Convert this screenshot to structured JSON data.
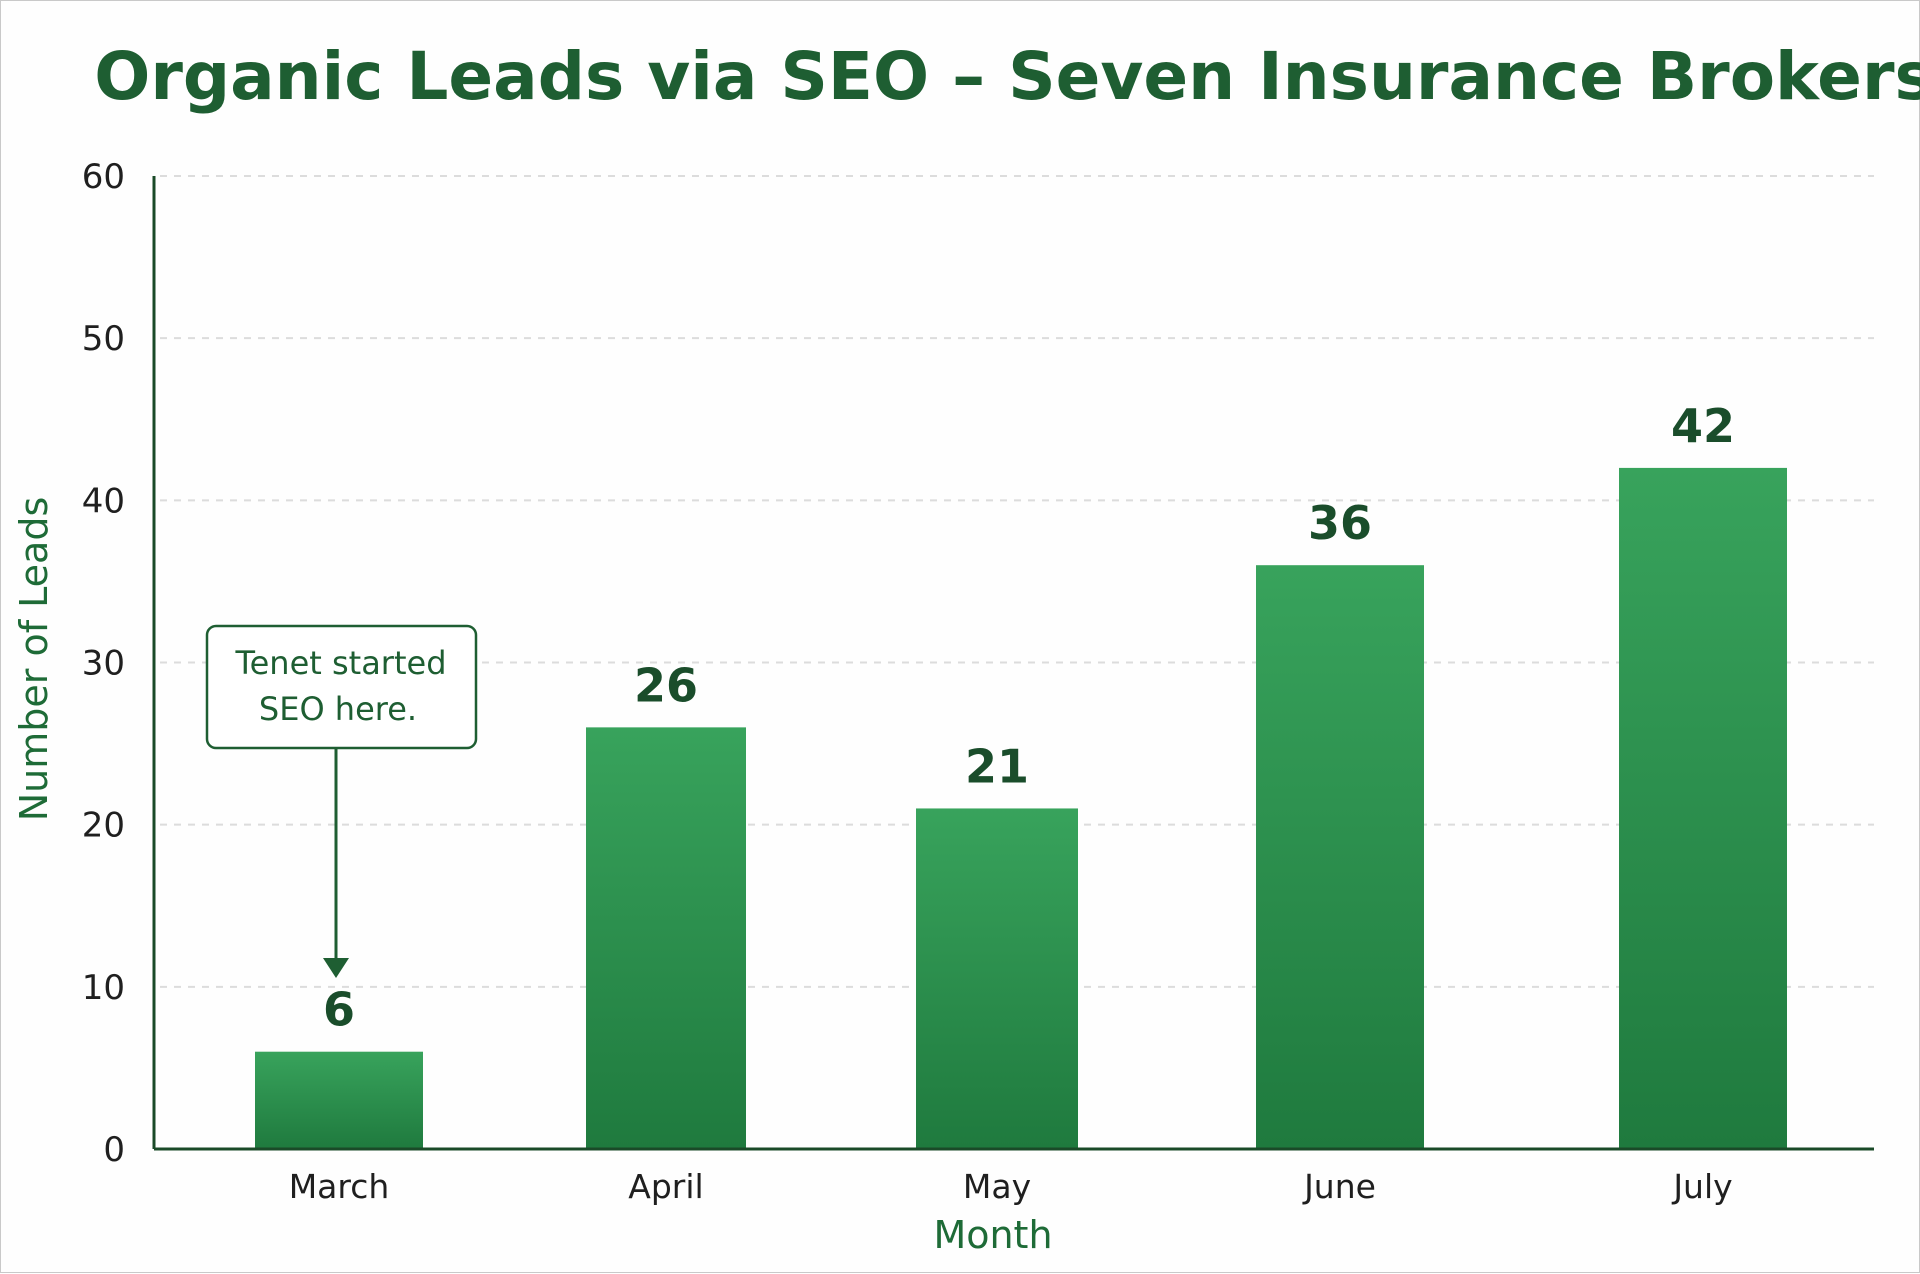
{
  "chart_data": {
    "type": "bar",
    "title": "Organic Leads via SEO – Seven Insurance Brokers",
    "xlabel": "Month",
    "ylabel": "Number of Leads",
    "categories": [
      "March",
      "April",
      "May",
      "June",
      "July"
    ],
    "values": [
      6,
      26,
      21,
      36,
      42
    ],
    "data_labels": [
      "6",
      "26",
      "21",
      "36",
      "42"
    ],
    "ylim": [
      0,
      60
    ],
    "yticks": [
      0,
      10,
      20,
      30,
      40,
      50,
      60
    ],
    "ytick_labels": [
      "0",
      "10",
      "20",
      "30",
      "40",
      "50",
      "60"
    ],
    "grid": true,
    "legend": "none",
    "colors": {
      "bar_top": "#38a35c",
      "bar_bottom": "#1f7a3e",
      "title": "#1e5e32",
      "axis_title": "#1e6b37"
    },
    "annotation": {
      "lines": [
        "Tenet started",
        "SEO here."
      ],
      "target_category": "March"
    }
  }
}
